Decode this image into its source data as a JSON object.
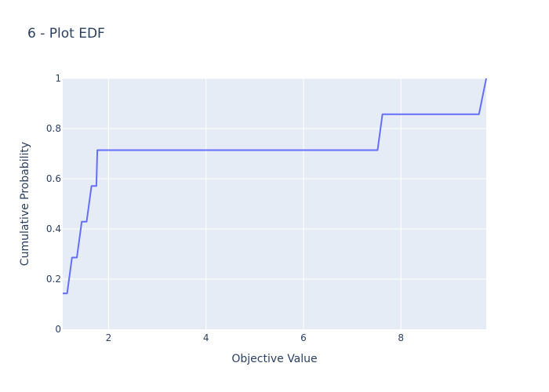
{
  "chart_data": {
    "type": "line",
    "title": "6 - Plot EDF",
    "xlabel": "Objective Value",
    "ylabel": "Cumulative Probability",
    "xlim": [
      1.06,
      9.75
    ],
    "ylim": [
      0,
      1
    ],
    "xticks": [
      2,
      4,
      6,
      8
    ],
    "yticks": [
      0,
      0.2,
      0.4,
      0.6,
      0.8,
      1
    ],
    "ytick_labels": [
      "0",
      "0.2",
      "0.4",
      "0.6",
      "0.8",
      "1"
    ],
    "grid": true,
    "series": [
      {
        "name": "",
        "color": "#636efa",
        "x": [
          1.06,
          1.15,
          1.25,
          1.35,
          1.45,
          1.55,
          1.65,
          1.75,
          1.77,
          7.52,
          7.62,
          9.6,
          9.75
        ],
        "y": [
          0.143,
          0.143,
          0.286,
          0.286,
          0.429,
          0.429,
          0.571,
          0.571,
          0.714,
          0.714,
          0.857,
          0.857,
          1.0
        ]
      }
    ]
  },
  "colors": {
    "plot_bg": "#e5ecf6",
    "grid": "#ffffff",
    "text": "#2a3f5f"
  }
}
